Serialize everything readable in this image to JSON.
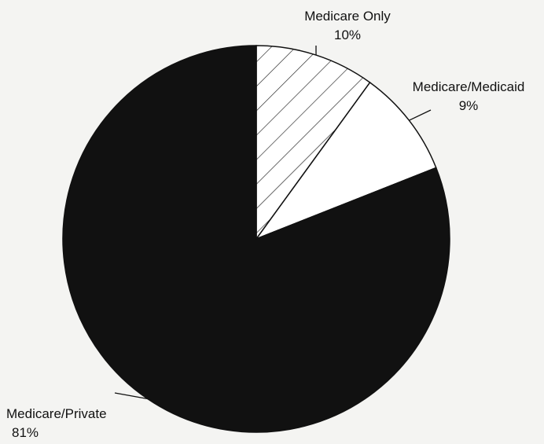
{
  "chart_data": {
    "type": "pie",
    "start_angle_deg": 0,
    "direction": "clockwise",
    "slices": [
      {
        "label": "Medicare Only",
        "value_label": "10%",
        "value": 10,
        "fill": "hatch",
        "color": "#ffffff"
      },
      {
        "label": "Medicare/Medicaid",
        "value_label": "9%",
        "value": 9,
        "fill": "solid",
        "color": "#ffffff"
      },
      {
        "label": "Medicare/Private",
        "value_label": "81%",
        "value": 81,
        "fill": "solid",
        "color": "#111111"
      }
    ],
    "legend": "none",
    "title": ""
  }
}
